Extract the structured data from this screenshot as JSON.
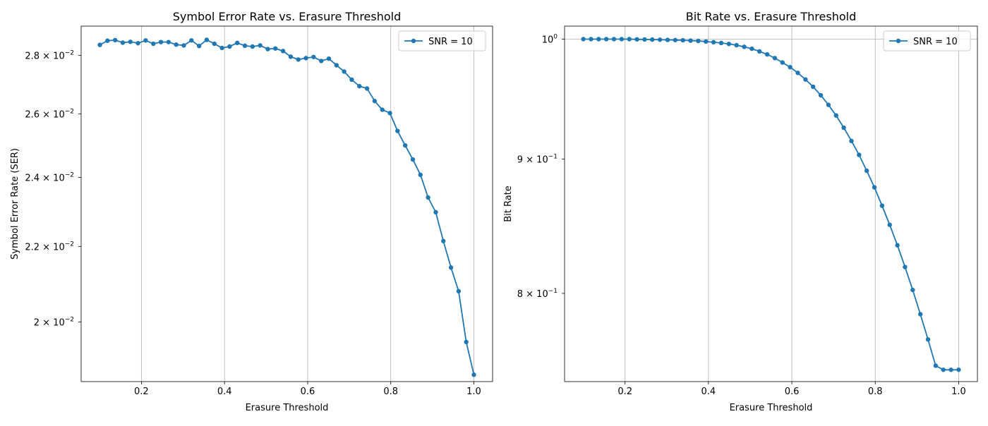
{
  "chart_data": [
    {
      "type": "line",
      "title": "Symbol Error Rate vs. Erasure Threshold",
      "xlabel": "Erasure Threshold",
      "ylabel": "Symbol Error Rate (SER)",
      "yscale": "log",
      "xlim": [
        0.055,
        1.045
      ],
      "ylim": [
        0.01855,
        0.02905
      ],
      "grid": "x only",
      "legend_position": "top-right",
      "color": "#1f77b4",
      "xticks": [
        {
          "value": 0.2,
          "label": "0.2"
        },
        {
          "value": 0.4,
          "label": "0.4"
        },
        {
          "value": 0.6,
          "label": "0.6"
        },
        {
          "value": 0.8,
          "label": "0.8"
        },
        {
          "value": 1.0,
          "label": "1.0"
        }
      ],
      "yticks": [
        {
          "value": 0.02,
          "base": "2",
          "exp": "−2"
        },
        {
          "value": 0.022,
          "base": "2.2",
          "exp": "−2"
        },
        {
          "value": 0.024,
          "base": "2.4",
          "exp": "−2"
        },
        {
          "value": 0.026,
          "base": "2.6",
          "exp": "−2"
        },
        {
          "value": 0.028,
          "base": "2.8",
          "exp": "−2"
        }
      ],
      "series": [
        {
          "name": "SNR = 10",
          "x": [
            0.1,
            0.1184,
            0.1367,
            0.1551,
            0.1735,
            0.1918,
            0.2102,
            0.2286,
            0.2469,
            0.2653,
            0.2837,
            0.302,
            0.3204,
            0.3388,
            0.3571,
            0.3755,
            0.3939,
            0.4122,
            0.4306,
            0.449,
            0.4673,
            0.4857,
            0.5041,
            0.5224,
            0.5408,
            0.5592,
            0.5776,
            0.5959,
            0.6143,
            0.6327,
            0.651,
            0.6694,
            0.6878,
            0.7061,
            0.7245,
            0.7429,
            0.7612,
            0.7796,
            0.798,
            0.8163,
            0.8347,
            0.8531,
            0.8714,
            0.8898,
            0.9082,
            0.9265,
            0.9449,
            0.9633,
            0.9816,
            1.0
          ],
          "y": [
            0.02837,
            0.02852,
            0.02854,
            0.02845,
            0.02848,
            0.02843,
            0.02853,
            0.02841,
            0.02847,
            0.02847,
            0.02838,
            0.02835,
            0.02853,
            0.02833,
            0.02855,
            0.02841,
            0.02826,
            0.02831,
            0.02844,
            0.02834,
            0.02831,
            0.02835,
            0.02822,
            0.02824,
            0.02815,
            0.02795,
            0.02785,
            0.0279,
            0.02794,
            0.0278,
            0.02788,
            0.02765,
            0.02743,
            0.02715,
            0.02693,
            0.02685,
            0.02643,
            0.02614,
            0.02603,
            0.02545,
            0.02499,
            0.02455,
            0.02408,
            0.0234,
            0.02297,
            0.02215,
            0.02142,
            0.02079,
            0.0195,
            0.01871
          ]
        }
      ]
    },
    {
      "type": "line",
      "title": "Bit Rate vs. Erasure Threshold",
      "xlabel": "Erasure Threshold",
      "ylabel": "Bit Rate",
      "yscale": "log",
      "xlim": [
        0.055,
        1.045
      ],
      "ylim": [
        0.7404,
        1.0115
      ],
      "grid": "x only",
      "legend_position": "top-right",
      "color": "#1f77b4",
      "xticks": [
        {
          "value": 0.2,
          "label": "0.2"
        },
        {
          "value": 0.4,
          "label": "0.4"
        },
        {
          "value": 0.6,
          "label": "0.6"
        },
        {
          "value": 0.8,
          "label": "0.8"
        },
        {
          "value": 1.0,
          "label": "1.0"
        }
      ],
      "yticks": [
        {
          "value": 1.0,
          "base": "10",
          "exp": "0",
          "plain": true
        },
        {
          "value": 0.9,
          "base": "9",
          "exp": "−1"
        },
        {
          "value": 0.8,
          "base": "8",
          "exp": "−1"
        }
      ],
      "series": [
        {
          "name": "SNR = 10",
          "x": [
            0.1,
            0.1184,
            0.1367,
            0.1551,
            0.1735,
            0.1918,
            0.2102,
            0.2286,
            0.2469,
            0.2653,
            0.2837,
            0.302,
            0.3204,
            0.3388,
            0.3571,
            0.3755,
            0.3939,
            0.4122,
            0.4306,
            0.449,
            0.4673,
            0.4857,
            0.5041,
            0.5224,
            0.5408,
            0.5592,
            0.5776,
            0.5959,
            0.6143,
            0.6327,
            0.651,
            0.6694,
            0.6878,
            0.7061,
            0.7245,
            0.7429,
            0.7612,
            0.7796,
            0.798,
            0.8163,
            0.8347,
            0.8531,
            0.8714,
            0.8898,
            0.9082,
            0.9265,
            0.9449,
            0.9633,
            0.9816,
            1.0
          ],
          "y": [
            1.0,
            1.0,
            1.0,
            1.0,
            1.0,
            1.0,
            1.0,
            0.9998,
            0.9997,
            0.9996,
            0.9995,
            0.9993,
            0.9992,
            0.999,
            0.9987,
            0.9984,
            0.9979,
            0.9973,
            0.9966,
            0.9958,
            0.9947,
            0.9933,
            0.9916,
            0.9893,
            0.9867,
            0.9835,
            0.9797,
            0.9757,
            0.9708,
            0.9652,
            0.9591,
            0.9519,
            0.9439,
            0.9352,
            0.9252,
            0.9145,
            0.9034,
            0.8909,
            0.878,
            0.864,
            0.8496,
            0.8345,
            0.8187,
            0.8024,
            0.7855,
            0.7683,
            0.7508,
            0.7481,
            0.7481,
            0.7481
          ]
        }
      ]
    }
  ]
}
